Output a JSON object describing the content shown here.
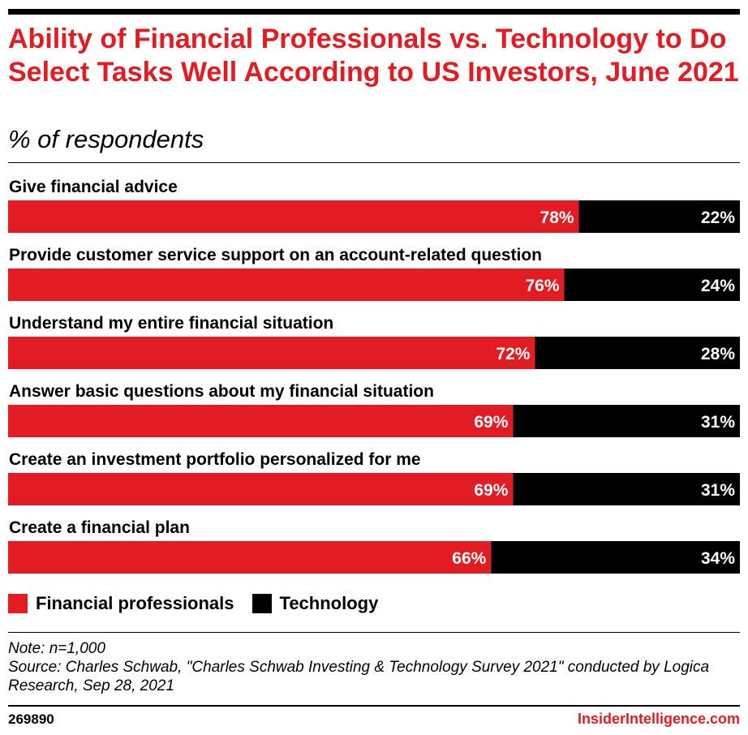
{
  "header": {
    "title": "Ability of Financial Professionals vs. Technology to Do Select Tasks Well According to US Investors, June 2021",
    "subtitle": "% of respondents"
  },
  "colors": {
    "brand_red": "#e31b23",
    "professionals": "#e31b23",
    "technology": "#000000"
  },
  "legend": {
    "items": [
      {
        "label": "Financial professionals",
        "color": "#e31b23"
      },
      {
        "label": "Technology",
        "color": "#000000"
      }
    ]
  },
  "chart_data": {
    "type": "bar",
    "orientation": "horizontal",
    "stacked": true,
    "title": "Ability of Financial Professionals vs. Technology to Do Select Tasks Well According to US Investors, June 2021",
    "subtitle": "% of respondents",
    "categories": [
      "Give financial advice",
      "Provide customer service support on an account-related question",
      "Understand my entire financial situation",
      "Answer basic questions about my financial situation",
      "Create an investment portfolio personalized for me",
      "Create a financial plan"
    ],
    "series": [
      {
        "name": "Financial professionals",
        "values": [
          78,
          76,
          72,
          69,
          69,
          66
        ],
        "color": "#e31b23"
      },
      {
        "name": "Technology",
        "values": [
          22,
          24,
          28,
          31,
          31,
          34
        ],
        "color": "#000000"
      }
    ],
    "value_suffix": "%",
    "xlim": [
      0,
      100
    ],
    "grid": false,
    "legend_position": "bottom-left"
  },
  "footer": {
    "note": "Note: n=1,000",
    "source": "Source: Charles Schwab, \"Charles Schwab Investing & Technology Survey 2021\" conducted by Logica Research, Sep 28, 2021",
    "chart_id": "269890",
    "brand": "InsiderIntelligence.com"
  }
}
